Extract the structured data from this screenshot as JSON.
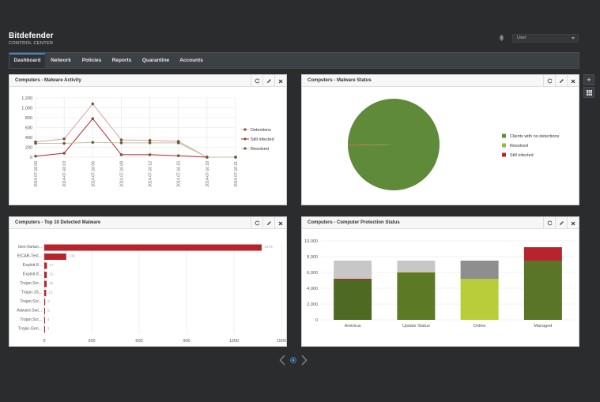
{
  "brand": {
    "name": "Bitdefender",
    "subtitle": "CONTROL CENTER"
  },
  "header": {
    "user_label": "User",
    "icons": [
      "bell-icon",
      "chevron-down-icon"
    ]
  },
  "nav": {
    "items": [
      {
        "label": "Dashboard",
        "active": true
      },
      {
        "label": "Network",
        "active": false
      },
      {
        "label": "Policies",
        "active": false
      },
      {
        "label": "Reports",
        "active": false
      },
      {
        "label": "Quarantine",
        "active": false
      },
      {
        "label": "Accounts",
        "active": false
      }
    ]
  },
  "side_buttons": {
    "add": "+",
    "grid_icon": "grid-icon"
  },
  "widgets": {
    "malware_activity": {
      "title": "Computers - Malware Activity"
    },
    "malware_status": {
      "title": "Computers - Malware Status"
    },
    "top10": {
      "title": "Computers - Top 10 Detected Malware"
    },
    "protection": {
      "title": "Computers - Computer Protection Status"
    }
  },
  "widget_tool_icons": [
    "refresh-icon",
    "edit-icon",
    "close-icon"
  ],
  "chart_data": [
    {
      "type": "line",
      "x": [
        "2014-07-16 00",
        "2014-07-16 03",
        "2014-07-16 06",
        "2014-07-16 09",
        "2014-07-16 12",
        "2014-07-16 15",
        "2014-07-16 18",
        "2014-07-16 21"
      ],
      "series": [
        {
          "name": "Detections",
          "color": "#e0a0a0",
          "values": [
            310,
            370,
            1080,
            350,
            340,
            320,
            0,
            0
          ]
        },
        {
          "name": "Still infected",
          "color": "#b8242e",
          "values": [
            20,
            80,
            780,
            50,
            50,
            30,
            0,
            0
          ]
        },
        {
          "name": "Resolved",
          "color": "#b9c9a0",
          "values": [
            280,
            280,
            300,
            290,
            290,
            290,
            0,
            0
          ]
        }
      ],
      "yticks": [
        "0",
        "200",
        "400",
        "600",
        "800",
        "1,000",
        "1,200"
      ],
      "ylim": [
        0,
        1200
      ],
      "grid": true,
      "legend": "right"
    },
    {
      "type": "pie",
      "slices": [
        {
          "name": "Clients with no detections",
          "color": "#5e8a3a",
          "value": 99.5
        },
        {
          "name": "Resolved",
          "color": "#8dc03f",
          "value": 0.2
        },
        {
          "name": "Still infected",
          "color": "#b8242e",
          "value": 0.3
        }
      ],
      "legend": "right"
    },
    {
      "type": "bar",
      "orientation": "horizontal",
      "categories": [
        "Gen:Varian...",
        "EICAR-Test...",
        "Exploit.If...",
        "Exploit.If...",
        "Trojan.Scr...",
        "Trojan.JS...",
        "Trojan.Scr...",
        "Adware.Swi...",
        "Trojan.Scr...",
        "Trojan.Gen..."
      ],
      "values": [
        1375,
        139,
        17,
        16,
        15,
        12,
        6,
        5,
        4,
        3
      ],
      "value_labels": [
        "1375",
        "139",
        "17",
        "16",
        "15",
        "12",
        "6",
        "5",
        "4",
        "3"
      ],
      "color": "#b8242e",
      "xticks": [
        "0",
        "300",
        "600",
        "900",
        "1200",
        "1500"
      ],
      "xlim": [
        0,
        1500
      ],
      "grid": true
    },
    {
      "type": "bar",
      "stacked": true,
      "categories": [
        "Antivirus",
        "Update Status",
        "Online",
        "Managed"
      ],
      "series": [
        {
          "name": "",
          "values": [
            {
              "v": 5100,
              "c": "#4e6a22"
            },
            {
              "v": 6000,
              "c": "#5c7a26"
            },
            {
              "v": 5200,
              "c": "#b9cd3b"
            },
            {
              "v": 7500,
              "c": "#5b7528"
            }
          ]
        },
        {
          "name": "",
          "values": [
            {
              "v": 100,
              "c": "#b8242e"
            },
            {
              "v": 100,
              "c": "#d4c878"
            },
            {
              "v": 2300,
              "c": "#8e8e8e"
            },
            {
              "v": 1700,
              "c": "#b8242e"
            }
          ]
        },
        {
          "name": "",
          "values": [
            {
              "v": 2300,
              "c": "#c7c7c7"
            },
            {
              "v": 1400,
              "c": "#c7c7c7"
            },
            {
              "v": 0,
              "c": "#c7c7c7"
            },
            {
              "v": 0,
              "c": "#c7c7c7"
            }
          ]
        }
      ],
      "yticks": [
        "0",
        "2,000",
        "4,000",
        "6,000",
        "8,000",
        "10,000"
      ],
      "ylim": [
        0,
        10000
      ],
      "grid": true
    }
  ]
}
